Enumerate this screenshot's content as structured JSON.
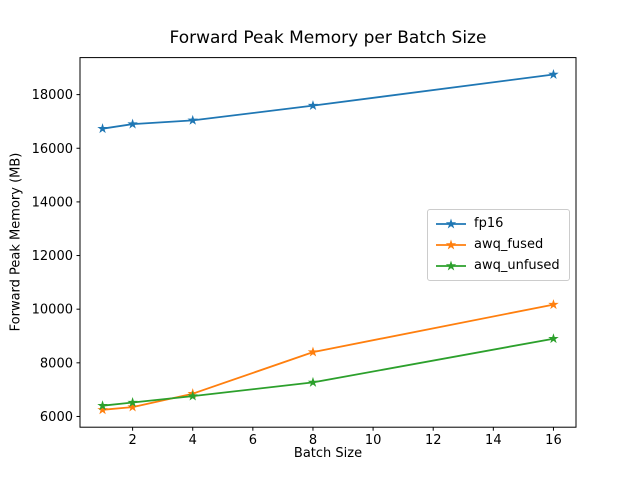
{
  "chart_data": {
    "type": "line",
    "title": "Forward Peak Memory per Batch Size",
    "xlabel": "Batch Size",
    "ylabel": "Forward Peak Memory (MB)",
    "x": [
      1,
      2,
      4,
      8,
      16
    ],
    "series": [
      {
        "name": "fp16",
        "color": "#1f77b4",
        "values": [
          16730,
          16900,
          17040,
          17590,
          18750
        ]
      },
      {
        "name": "awq_fused",
        "color": "#ff7f0e",
        "values": [
          6250,
          6350,
          6850,
          8400,
          10170
        ]
      },
      {
        "name": "awq_unfused",
        "color": "#2ca02c",
        "values": [
          6400,
          6520,
          6760,
          7270,
          8900
        ]
      }
    ],
    "marker": "star",
    "xticks": [
      2,
      4,
      6,
      8,
      10,
      12,
      14,
      16
    ],
    "yticks": [
      6000,
      8000,
      10000,
      12000,
      14000,
      16000,
      18000
    ],
    "xlim": [
      0.25,
      16.75
    ],
    "ylim": [
      5600,
      19380
    ],
    "grid": false,
    "legend_position": "center right",
    "axis_color": "#000000",
    "background": "#ffffff"
  }
}
